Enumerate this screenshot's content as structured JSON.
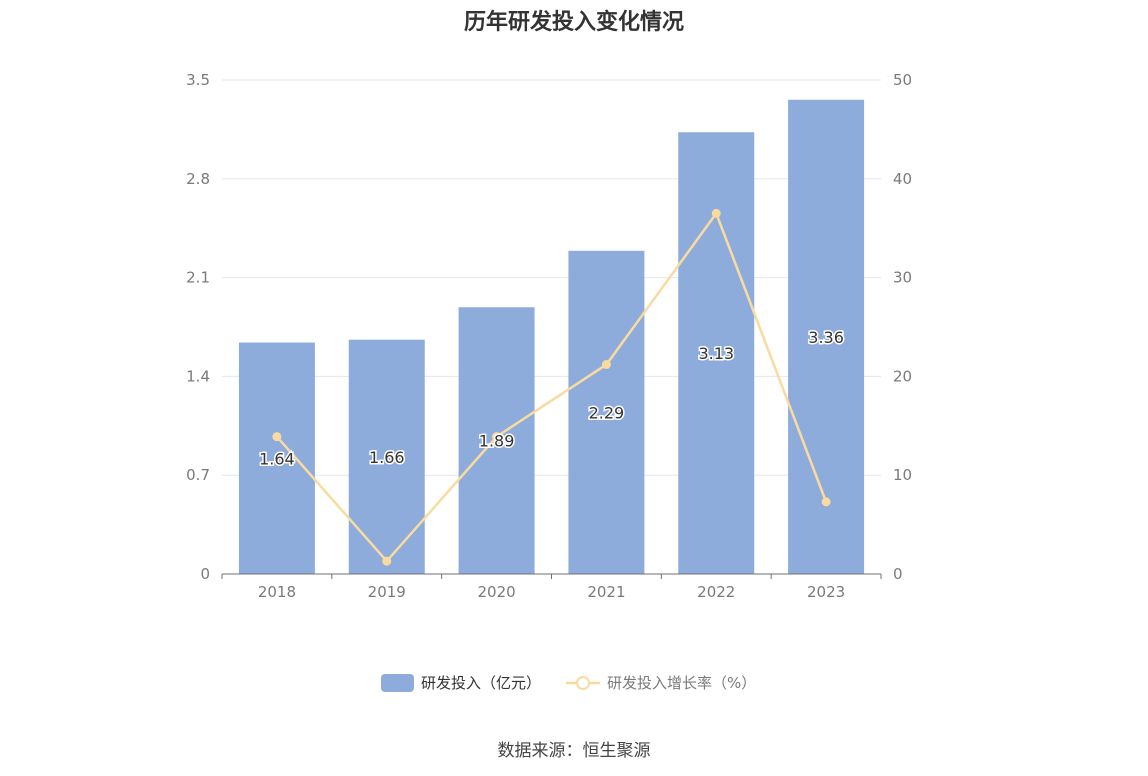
{
  "title": "历年研发投入变化情况",
  "source": "数据来源：恒生聚源",
  "colors": {
    "bar": "#8eacdb",
    "line": "#f9dba0",
    "grid": "#e4e7ef",
    "axis": "#6e7079"
  },
  "chart_data": {
    "type": "bar",
    "title": "历年研发投入变化情况",
    "categories": [
      "2018",
      "2019",
      "2020",
      "2021",
      "2022",
      "2023"
    ],
    "series": [
      {
        "name": "研发投入（亿元）",
        "type": "bar",
        "axis": "left",
        "values": [
          1.64,
          1.66,
          1.89,
          2.29,
          3.13,
          3.36
        ],
        "labels": [
          "1.64",
          "1.66",
          "1.89",
          "2.29",
          "3.13",
          "3.36"
        ]
      },
      {
        "name": "研发投入增长率（%）",
        "type": "line",
        "axis": "right",
        "values": [
          13.9,
          1.3,
          13.9,
          21.2,
          36.5,
          7.3
        ]
      }
    ],
    "y_left": {
      "min": 0,
      "max": 3.5,
      "ticks": [
        "0",
        "0.7",
        "1.4",
        "2.1",
        "2.8",
        "3.5"
      ]
    },
    "y_right": {
      "min": 0,
      "max": 50,
      "ticks": [
        "0",
        "10",
        "20",
        "30",
        "40",
        "50"
      ]
    },
    "grid": true,
    "legend_position": "bottom"
  }
}
